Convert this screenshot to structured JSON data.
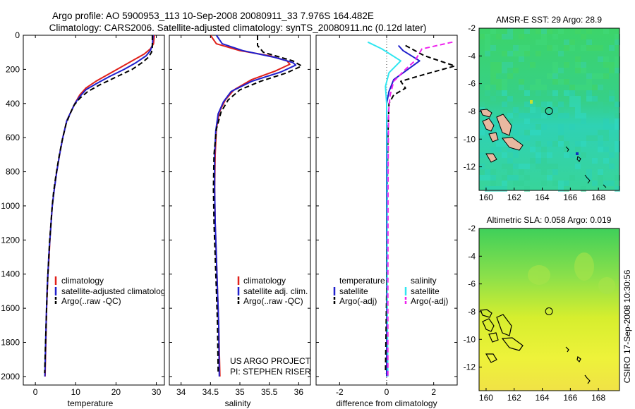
{
  "title_line1": "Argo profile: AO 5900953_113 10-Sep-2008 20080911_33 7.976S 164.482E",
  "title_line2": "Climatology: CARS2006. Satellite-adjusted climatology: synTS_20080911.nc (0.12d later)",
  "side_label": "CSIRO 17-Sep-2008 10:30:56",
  "colors": {
    "red": "#e0201a",
    "blue": "#1f1fcc",
    "black": "#000000",
    "cyan": "#30e6f0",
    "magenta": "#ee22ee"
  },
  "chart_data": [
    {
      "id": "temperature",
      "type": "line",
      "xlabel": "temperature",
      "xlim": [
        -3,
        32
      ],
      "ylim": [
        2050,
        0
      ],
      "reverse_y": true,
      "xticks": [
        0,
        10,
        20,
        30
      ],
      "yticks": [
        0,
        200,
        400,
        600,
        800,
        1000,
        1200,
        1400,
        1600,
        1800,
        2000
      ],
      "legend": [
        "climatology",
        "satellite-adjusted climatology",
        "Argo(..raw -QC)"
      ],
      "series": [
        {
          "name": "climatology",
          "color": "red",
          "dash": "",
          "points": [
            [
              29.5,
              0
            ],
            [
              29.3,
              50
            ],
            [
              28.5,
              80
            ],
            [
              27,
              110
            ],
            [
              24,
              150
            ],
            [
              21,
              190
            ],
            [
              18,
              230
            ],
            [
              15,
              270
            ],
            [
              12.5,
              310
            ],
            [
              11,
              350
            ],
            [
              9.8,
              400
            ],
            [
              8.8,
              450
            ],
            [
              7.8,
              500
            ],
            [
              6.8,
              600
            ],
            [
              6,
              700
            ],
            [
              5.3,
              800
            ],
            [
              4.7,
              900
            ],
            [
              4.2,
              1000
            ],
            [
              3.9,
              1100
            ],
            [
              3.6,
              1200
            ],
            [
              3.4,
              1300
            ],
            [
              3.1,
              1400
            ],
            [
              2.95,
              1500
            ],
            [
              2.8,
              1600
            ],
            [
              2.6,
              1800
            ],
            [
              2.4,
              2000
            ]
          ]
        },
        {
          "name": "satellite-adjusted climatology",
          "color": "blue",
          "dash": "",
          "points": [
            [
              29.2,
              0
            ],
            [
              29,
              60
            ],
            [
              28.5,
              90
            ],
            [
              27.5,
              120
            ],
            [
              25,
              160
            ],
            [
              22,
              200
            ],
            [
              18.5,
              240
            ],
            [
              15,
              285
            ],
            [
              12.5,
              320
            ],
            [
              11,
              360
            ],
            [
              9.8,
              400
            ],
            [
              8.8,
              450
            ],
            [
              7.8,
              500
            ],
            [
              6.8,
              600
            ],
            [
              6,
              700
            ],
            [
              5.3,
              800
            ],
            [
              4.7,
              900
            ],
            [
              4.2,
              1000
            ],
            [
              3.9,
              1100
            ],
            [
              3.6,
              1200
            ],
            [
              3.3,
              1300
            ],
            [
              3.1,
              1400
            ],
            [
              2.9,
              1500
            ],
            [
              2.75,
              1600
            ],
            [
              2.55,
              1800
            ],
            [
              2.35,
              2000
            ]
          ]
        },
        {
          "name": "Argo(..raw -QC)",
          "color": "black",
          "dash": "7,4",
          "points": [
            [
              29,
              0
            ],
            [
              29,
              70
            ],
            [
              28.8,
              100
            ],
            [
              28,
              130
            ],
            [
              26.5,
              160
            ],
            [
              24,
              200
            ],
            [
              20,
              245
            ],
            [
              16,
              290
            ],
            [
              13,
              330
            ],
            [
              11,
              370
            ],
            [
              9.6,
              410
            ],
            [
              8.6,
              460
            ],
            [
              7.6,
              520
            ],
            [
              6.6,
              620
            ],
            [
              5.8,
              720
            ],
            [
              5.1,
              820
            ],
            [
              4.5,
              920
            ],
            [
              4.1,
              1020
            ],
            [
              3.8,
              1120
            ],
            [
              3.5,
              1220
            ],
            [
              3.3,
              1320
            ],
            [
              3.05,
              1420
            ],
            [
              2.9,
              1520
            ],
            [
              2.75,
              1620
            ],
            [
              2.5,
              1820
            ],
            [
              2.3,
              1980
            ]
          ]
        }
      ]
    },
    {
      "id": "salinity",
      "type": "line",
      "xlabel": "salinity",
      "xlim": [
        33.8,
        36.2
      ],
      "ylim": [
        2050,
        0
      ],
      "reverse_y": true,
      "xticks": [
        34,
        34.5,
        35,
        35.5,
        36
      ],
      "yticks": [
        0,
        200,
        400,
        600,
        800,
        1000,
        1200,
        1400,
        1600,
        1800,
        2000
      ],
      "legend": [
        "climatology",
        "satellite adj. clim.",
        "Argo(..raw -QC)"
      ],
      "annotations": [
        "US ARGO PROJECT",
        "PI: STEPHEN RISER"
      ],
      "series": [
        {
          "name": "climatology",
          "color": "red",
          "dash": "",
          "points": [
            [
              34.5,
              0
            ],
            [
              34.6,
              50
            ],
            [
              35,
              90
            ],
            [
              35.5,
              120
            ],
            [
              35.8,
              150
            ],
            [
              35.85,
              170
            ],
            [
              35.6,
              210
            ],
            [
              35.2,
              260
            ],
            [
              34.9,
              320
            ],
            [
              34.75,
              380
            ],
            [
              34.65,
              450
            ],
            [
              34.6,
              550
            ],
            [
              34.58,
              700
            ],
            [
              34.57,
              900
            ],
            [
              34.58,
              1100
            ],
            [
              34.6,
              1300
            ],
            [
              34.62,
              1500
            ],
            [
              34.64,
              1700
            ],
            [
              34.66,
              2000
            ]
          ]
        },
        {
          "name": "satellite adj. clim.",
          "color": "blue",
          "dash": "",
          "points": [
            [
              34.6,
              0
            ],
            [
              34.7,
              50
            ],
            [
              35.05,
              90
            ],
            [
              35.6,
              130
            ],
            [
              35.9,
              160
            ],
            [
              35.95,
              175
            ],
            [
              35.7,
              215
            ],
            [
              35.2,
              270
            ],
            [
              34.85,
              330
            ],
            [
              34.72,
              390
            ],
            [
              34.63,
              460
            ],
            [
              34.59,
              560
            ],
            [
              34.57,
              700
            ],
            [
              34.57,
              900
            ],
            [
              34.58,
              1100
            ],
            [
              34.6,
              1300
            ],
            [
              34.62,
              1500
            ],
            [
              34.64,
              1700
            ],
            [
              34.65,
              2000
            ]
          ]
        },
        {
          "name": "Argo(..raw -QC)",
          "color": "black",
          "dash": "7,4",
          "points": [
            [
              35.3,
              0
            ],
            [
              35.3,
              60
            ],
            [
              35.4,
              100
            ],
            [
              35.9,
              150
            ],
            [
              36.05,
              180
            ],
            [
              35.8,
              220
            ],
            [
              35.35,
              270
            ],
            [
              35,
              320
            ],
            [
              34.8,
              380
            ],
            [
              34.68,
              450
            ],
            [
              34.6,
              550
            ],
            [
              34.56,
              700
            ],
            [
              34.55,
              900
            ],
            [
              34.56,
              1100
            ],
            [
              34.58,
              1300
            ],
            [
              34.6,
              1500
            ],
            [
              34.62,
              1700
            ],
            [
              34.63,
              1980
            ]
          ]
        }
      ]
    },
    {
      "id": "difference",
      "type": "line",
      "xlabel": "difference from climatology",
      "xlim": [
        -3,
        3
      ],
      "ylim": [
        2050,
        0
      ],
      "reverse_y": true,
      "xticks": [
        -2,
        0,
        2
      ],
      "yticks": [
        0,
        200,
        400,
        600,
        800,
        1000,
        1200,
        1400,
        1600,
        1800,
        2000
      ],
      "legend_headers": [
        "temperature",
        "salinity"
      ],
      "legend": [
        "satellite",
        "Argo(-adj)",
        "satellite",
        "Argo(-adj)"
      ],
      "series": [
        {
          "name": "temperature satellite",
          "color": "blue",
          "dash": "",
          "points": [
            [
              0.5,
              60
            ],
            [
              0.7,
              90
            ],
            [
              1.4,
              150
            ],
            [
              0.9,
              200
            ],
            [
              0.3,
              260
            ],
            [
              0.1,
              330
            ],
            [
              0,
              400
            ],
            [
              0,
              600
            ],
            [
              0,
              800
            ],
            [
              0,
              1000
            ],
            [
              0,
              1500
            ],
            [
              0,
              2000
            ]
          ]
        },
        {
          "name": "temperature Argo(-adj)",
          "color": "black",
          "dash": "7,4",
          "points": [
            [
              0.8,
              60
            ],
            [
              1.6,
              120
            ],
            [
              2.9,
              180
            ],
            [
              1.6,
              230
            ],
            [
              0.6,
              270
            ],
            [
              0.8,
              310
            ],
            [
              0.3,
              350
            ],
            [
              0.1,
              400
            ],
            [
              0.05,
              600
            ],
            [
              0.02,
              1000
            ],
            [
              0,
              1500
            ],
            [
              -0.05,
              1980
            ]
          ]
        },
        {
          "name": "salinity satellite",
          "color": "cyan",
          "dash": "",
          "points": [
            [
              -0.8,
              40
            ],
            [
              -0.2,
              80
            ],
            [
              0.6,
              150
            ],
            [
              0.1,
              220
            ],
            [
              -0.05,
              300
            ],
            [
              0,
              400
            ],
            [
              0.02,
              800
            ],
            [
              0.02,
              1500
            ],
            [
              0.05,
              2000
            ]
          ]
        },
        {
          "name": "salinity Argo(-adj)",
          "color": "magenta",
          "dash": "7,4",
          "points": [
            [
              2.8,
              40
            ],
            [
              1.5,
              80
            ],
            [
              1.2,
              150
            ],
            [
              0.8,
              200
            ],
            [
              0.3,
              270
            ],
            [
              0.15,
              350
            ],
            [
              0.08,
              450
            ],
            [
              0.06,
              800
            ],
            [
              0.05,
              1500
            ],
            [
              0.05,
              2000
            ]
          ]
        }
      ]
    },
    {
      "id": "sst_map",
      "type": "heatmap",
      "title": "AMSR-E SST: 29 Argo: 28.9",
      "xlim": [
        159.5,
        169.5
      ],
      "ylim": [
        -13.7,
        -2
      ],
      "xticks": [
        160,
        162,
        164,
        166,
        168
      ],
      "yticks": [
        -2,
        -4,
        -6,
        -8,
        -10,
        -12
      ],
      "marker": [
        164.482,
        -7.976
      ]
    },
    {
      "id": "sla_map",
      "type": "heatmap",
      "title": "Altimetric SLA: 0.058 Argo: 0.019",
      "xlim": [
        159.5,
        169.5
      ],
      "ylim": [
        -13.7,
        -2
      ],
      "xticks": [
        160,
        162,
        164,
        166,
        168
      ],
      "yticks": [
        -2,
        -4,
        -6,
        -8,
        -10,
        -12
      ],
      "marker": [
        164.482,
        -7.976
      ]
    }
  ]
}
